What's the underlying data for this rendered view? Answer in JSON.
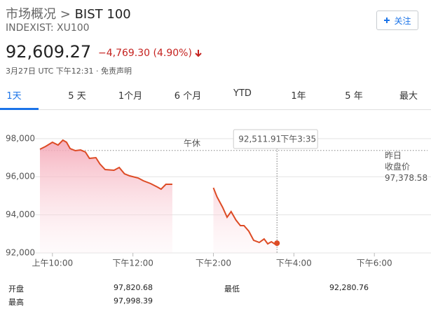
{
  "header": {
    "breadcrumb": "市场概况",
    "separator": ">",
    "title": "BIST 100",
    "subtitle": "INDEXIST: XU100",
    "follow": "关注",
    "price": "92,609.27",
    "change": "−4,769.30 (4.90%)",
    "date": "3月27日 UTC 下午12:31",
    "dot": "·",
    "disclaimer": "免责声明"
  },
  "tabs": [
    "1天",
    "5 天",
    "1个月",
    "6 个月",
    "YTD",
    "1年",
    "5 年",
    "最大"
  ],
  "chart_data": {
    "type": "line",
    "x": [
      9.69,
      9.83,
      10.0,
      10.14,
      10.26,
      10.35,
      10.44,
      10.57,
      10.7,
      10.82,
      10.92,
      11.08,
      11.18,
      11.31,
      11.53,
      11.66,
      11.79,
      11.92,
      12.13,
      12.26,
      12.44,
      12.61,
      12.7,
      12.82,
      12.98,
      13.5,
      14.0,
      14.09,
      14.23,
      14.34,
      14.44,
      14.56,
      14.67,
      14.76,
      14.88,
      15.0,
      15.14,
      15.26,
      15.35,
      15.44,
      15.52,
      15.58
    ],
    "series": [
      {
        "color": "#dd4b25",
        "values": [
          97441,
          97588,
          97809,
          97662,
          97919,
          97809,
          97478,
          97368,
          97404,
          97294,
          96963,
          97000,
          96669,
          96375,
          96338,
          96485,
          96154,
          96044,
          95934,
          95787,
          95640,
          95456,
          95346,
          95603,
          95603,
          null,
          95419,
          94941,
          94390,
          93875,
          94169,
          93728,
          93434,
          93434,
          93140,
          92662,
          92551,
          92735,
          92478,
          92588,
          92478,
          92511.91
        ]
      }
    ],
    "xlim": [
      9.69,
      19.32
    ],
    "xticks": [
      {
        "value": 10,
        "label": "上午10:00"
      },
      {
        "value": 12,
        "label": "下午12:00"
      },
      {
        "value": 14,
        "label": "下午2:00"
      },
      {
        "value": 16,
        "label": "下午4:00"
      },
      {
        "value": 18,
        "label": "下午6:00"
      }
    ],
    "ylim": [
      92000,
      98600
    ],
    "yticks": [
      {
        "value": 92000,
        "label": "92,000"
      },
      {
        "value": 94000,
        "label": "94,000"
      },
      {
        "value": 96000,
        "label": "96,000"
      },
      {
        "value": 98000,
        "label": "98,000"
      }
    ],
    "grid": true,
    "annotation": "午休",
    "previous_close": {
      "value": 97378.58,
      "label": "97,378.58",
      "title": [
        "昨日",
        "收盘价"
      ]
    },
    "tooltip": {
      "x": 15.58,
      "value": 92511.91,
      "label": "92,511.91",
      "time": "下午3:35"
    }
  },
  "stats": [
    [
      "开盘",
      "97,820.68"
    ],
    [
      "最高",
      "97,998.39"
    ],
    [
      "最低",
      "92,280.76"
    ]
  ]
}
